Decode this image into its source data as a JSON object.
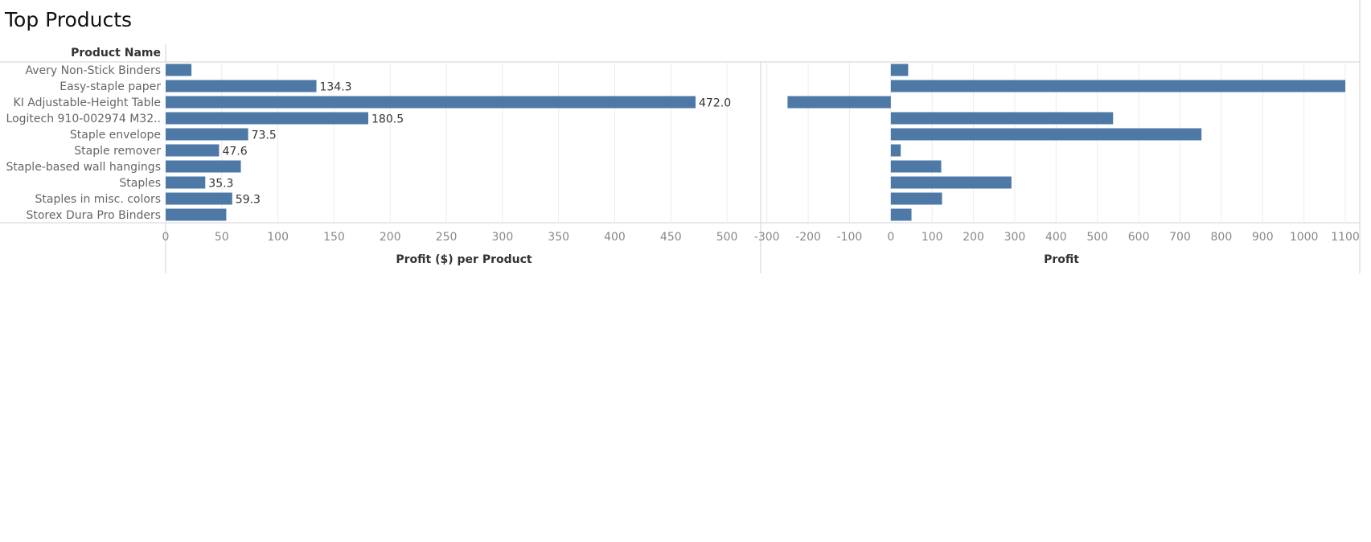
{
  "title": "Top Products",
  "header": {
    "row_label": "Product Name"
  },
  "colors": {
    "bar": "#4e79a7",
    "grid": "#ececec",
    "axis": "#d0d0d0"
  },
  "chart_data": [
    {
      "type": "bar",
      "orientation": "horizontal",
      "categories": [
        "Avery Non-Stick Binders",
        "Easy-staple paper",
        "KI Adjustable-Height Table",
        "Logitech 910-002974 M32..",
        "Staple envelope",
        "Staple remover",
        "Staple-based wall hangings",
        "Staples",
        "Staples in misc. colors",
        "Storex Dura Pro Binders"
      ],
      "values": [
        23,
        134.3,
        472.0,
        180.5,
        73.5,
        47.6,
        67,
        35.3,
        59.3,
        54
      ],
      "data_labels": [
        "",
        "134.3",
        "472.0",
        "180.5",
        "73.5",
        "47.6",
        "",
        "35.3",
        "59.3",
        ""
      ],
      "xlabel": "Profit ($) per Product",
      "xlim": [
        0,
        530
      ],
      "ticks": [
        0,
        50,
        100,
        150,
        200,
        250,
        300,
        350,
        400,
        450,
        500
      ],
      "tick_labels": [
        "0",
        "50",
        "100",
        "150",
        "200",
        "250",
        "300",
        "350",
        "400",
        "450",
        "500"
      ],
      "grid": true
    },
    {
      "type": "bar",
      "orientation": "horizontal",
      "categories": [
        "Avery Non-Stick Binders",
        "Easy-staple paper",
        "KI Adjustable-Height Table",
        "Logitech 910-002974 M32..",
        "Staple envelope",
        "Staple remover",
        "Staple-based wall hangings",
        "Staples",
        "Staples in misc. colors",
        "Storex Dura Pro Binders"
      ],
      "values": [
        42,
        1100,
        -250,
        538,
        752,
        24,
        122,
        292,
        124,
        50
      ],
      "xlabel": "Profit",
      "xlim": [
        -315,
        1135
      ],
      "ticks": [
        -300,
        -200,
        -100,
        0,
        100,
        200,
        300,
        400,
        500,
        600,
        700,
        800,
        900,
        1000,
        1100
      ],
      "tick_labels": [
        "-300",
        "-200",
        "-100",
        "0",
        "100",
        "200",
        "300",
        "400",
        "500",
        "600",
        "700",
        "800",
        "900",
        "1000",
        "1100"
      ],
      "grid": true
    }
  ]
}
